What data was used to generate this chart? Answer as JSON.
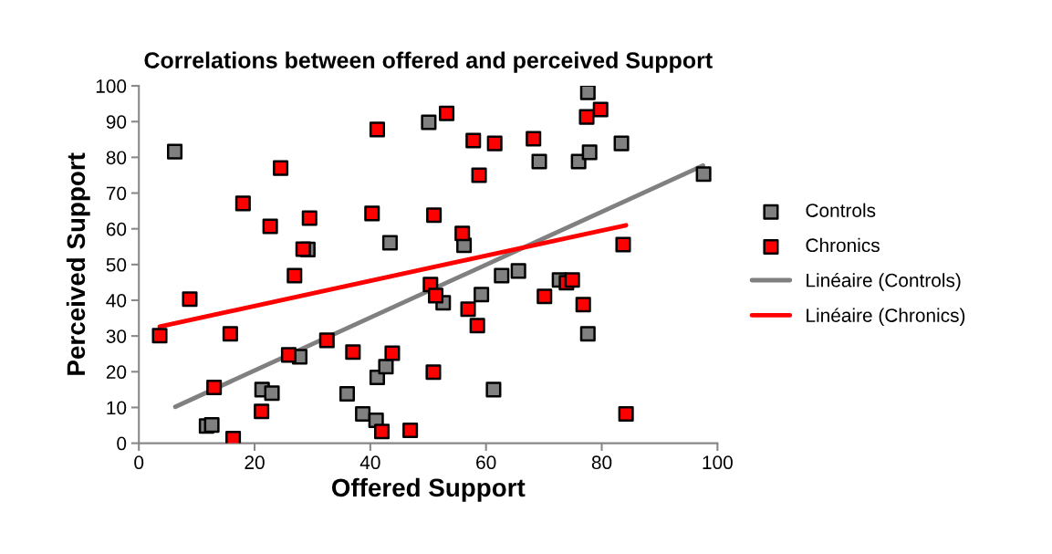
{
  "chart_data": {
    "type": "scatter",
    "title": "Correlations between offered and perceived Support",
    "xlabel": "Offered Support",
    "ylabel": "Perceived Support",
    "xlim": [
      0,
      100
    ],
    "xticks": [
      0,
      20,
      40,
      60,
      80,
      100
    ],
    "ylim": [
      0,
      100
    ],
    "yticks": [
      0,
      10,
      20,
      30,
      40,
      50,
      60,
      70,
      80,
      90,
      100
    ],
    "grid": false,
    "legend": "right",
    "series": [
      {
        "name": "Controls",
        "marker": "square",
        "color": "#808080",
        "x": [
          6.2,
          43.4,
          50.1,
          77.6,
          83.4,
          69.2,
          76,
          77.9,
          97.6,
          56.2,
          29.2,
          62.7,
          65.6,
          72.7,
          52.6,
          59.2,
          77.6,
          61.3,
          21.3,
          23,
          27.8,
          36,
          38.7,
          41,
          41.2,
          42.7,
          11.7,
          12.6
        ],
        "values": [
          81.6,
          56.1,
          89.8,
          98.2,
          83.9,
          78.8,
          78.8,
          81.4,
          75.3,
          55.4,
          54.2,
          46.9,
          48.2,
          45.7,
          39.3,
          41.6,
          30.6,
          15,
          15,
          14,
          24.2,
          13.8,
          8.2,
          6.4,
          18.4,
          21.4,
          4.8,
          5.1
        ]
      },
      {
        "name": "Chronics",
        "marker": "square",
        "color": "#ff0000",
        "x": [
          41.2,
          24.5,
          18,
          22.7,
          29.5,
          28.4,
          40.3,
          53.2,
          57.8,
          61.5,
          68.2,
          77.4,
          79.8,
          58.8,
          51,
          55.9,
          83.7,
          3.6,
          8.8,
          15.8,
          13,
          16.3,
          21.2,
          26.9,
          25.9,
          32.5,
          37,
          43.8,
          42,
          46.9,
          50.4,
          51.3,
          56.9,
          58.5,
          50.9,
          70.1,
          73.9,
          74.9,
          76.8,
          84.2
        ],
        "values": [
          87.8,
          77,
          67.1,
          60.7,
          63,
          54.3,
          64.3,
          92.3,
          84.7,
          83.9,
          85.2,
          91.3,
          93.4,
          75,
          63.8,
          58.7,
          55.6,
          30.1,
          40.3,
          30.6,
          15.6,
          1.3,
          8.9,
          46.9,
          24.7,
          28.8,
          25.5,
          25.2,
          3.3,
          3.6,
          44.4,
          41.3,
          37.5,
          32.9,
          19.9,
          41.1,
          44.9,
          45.7,
          38.8,
          8.2
        ]
      },
      {
        "name": "Linéaire (Controls)",
        "type": "line",
        "marker": "none",
        "color": "#808080",
        "x": [
          6.3,
          97.5
        ],
        "values": [
          10.2,
          77.7
        ]
      },
      {
        "name": "Linéaire (Chronics)",
        "type": "line",
        "marker": "none",
        "color": "#ff0000",
        "x": [
          3.6,
          84.2
        ],
        "values": [
          32.6,
          61
        ]
      }
    ]
  }
}
